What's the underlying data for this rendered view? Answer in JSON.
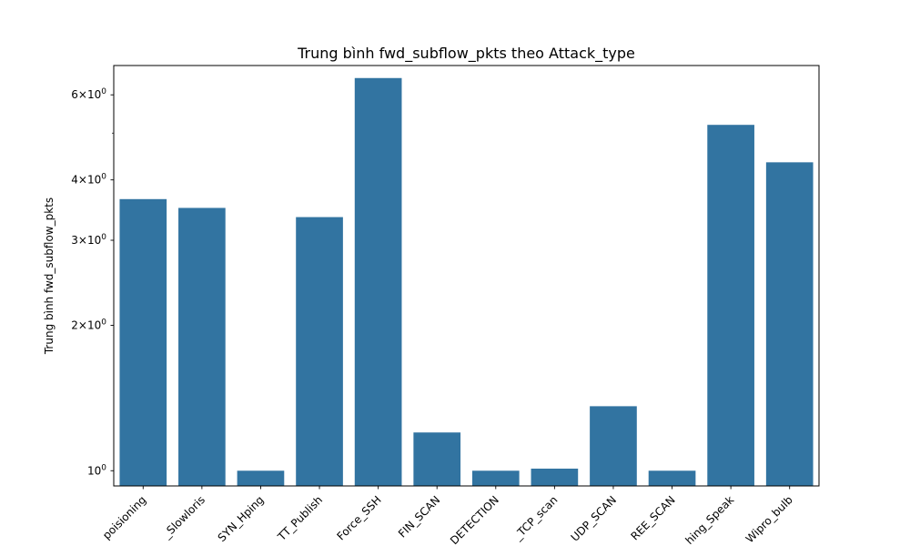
{
  "chart_data": {
    "type": "bar",
    "title": "Trung bình fwd_subflow_pkts theo Attack_type",
    "xlabel": "",
    "ylabel": "Trung bình fwd_subflow_pkts",
    "yscale": "log",
    "ylim": [
      0.93,
      6.9
    ],
    "categories": [
      "poisioning",
      "_Slowloris",
      "SYN_Hping",
      "TT_Publish",
      "Force_SSH",
      "FIN_SCAN",
      "DETECTION",
      "_TCP_scan",
      "UDP_SCAN",
      "REE_SCAN",
      "hing_Speak",
      "Wipro_bulb"
    ],
    "values": [
      3.65,
      3.5,
      1.0,
      3.35,
      6.5,
      1.2,
      1.0,
      1.01,
      1.36,
      1.0,
      5.2,
      4.35
    ],
    "yticks": [
      {
        "value": 1,
        "label": "10^0"
      },
      {
        "value": 2,
        "label": "2×10^0"
      },
      {
        "value": 3,
        "label": "3×10^0"
      },
      {
        "value": 4,
        "label": "4×10^0"
      },
      {
        "value": 6,
        "label": "6×10^0"
      }
    ],
    "bar_color": "#3274a1",
    "grid": false,
    "legend": "none"
  }
}
